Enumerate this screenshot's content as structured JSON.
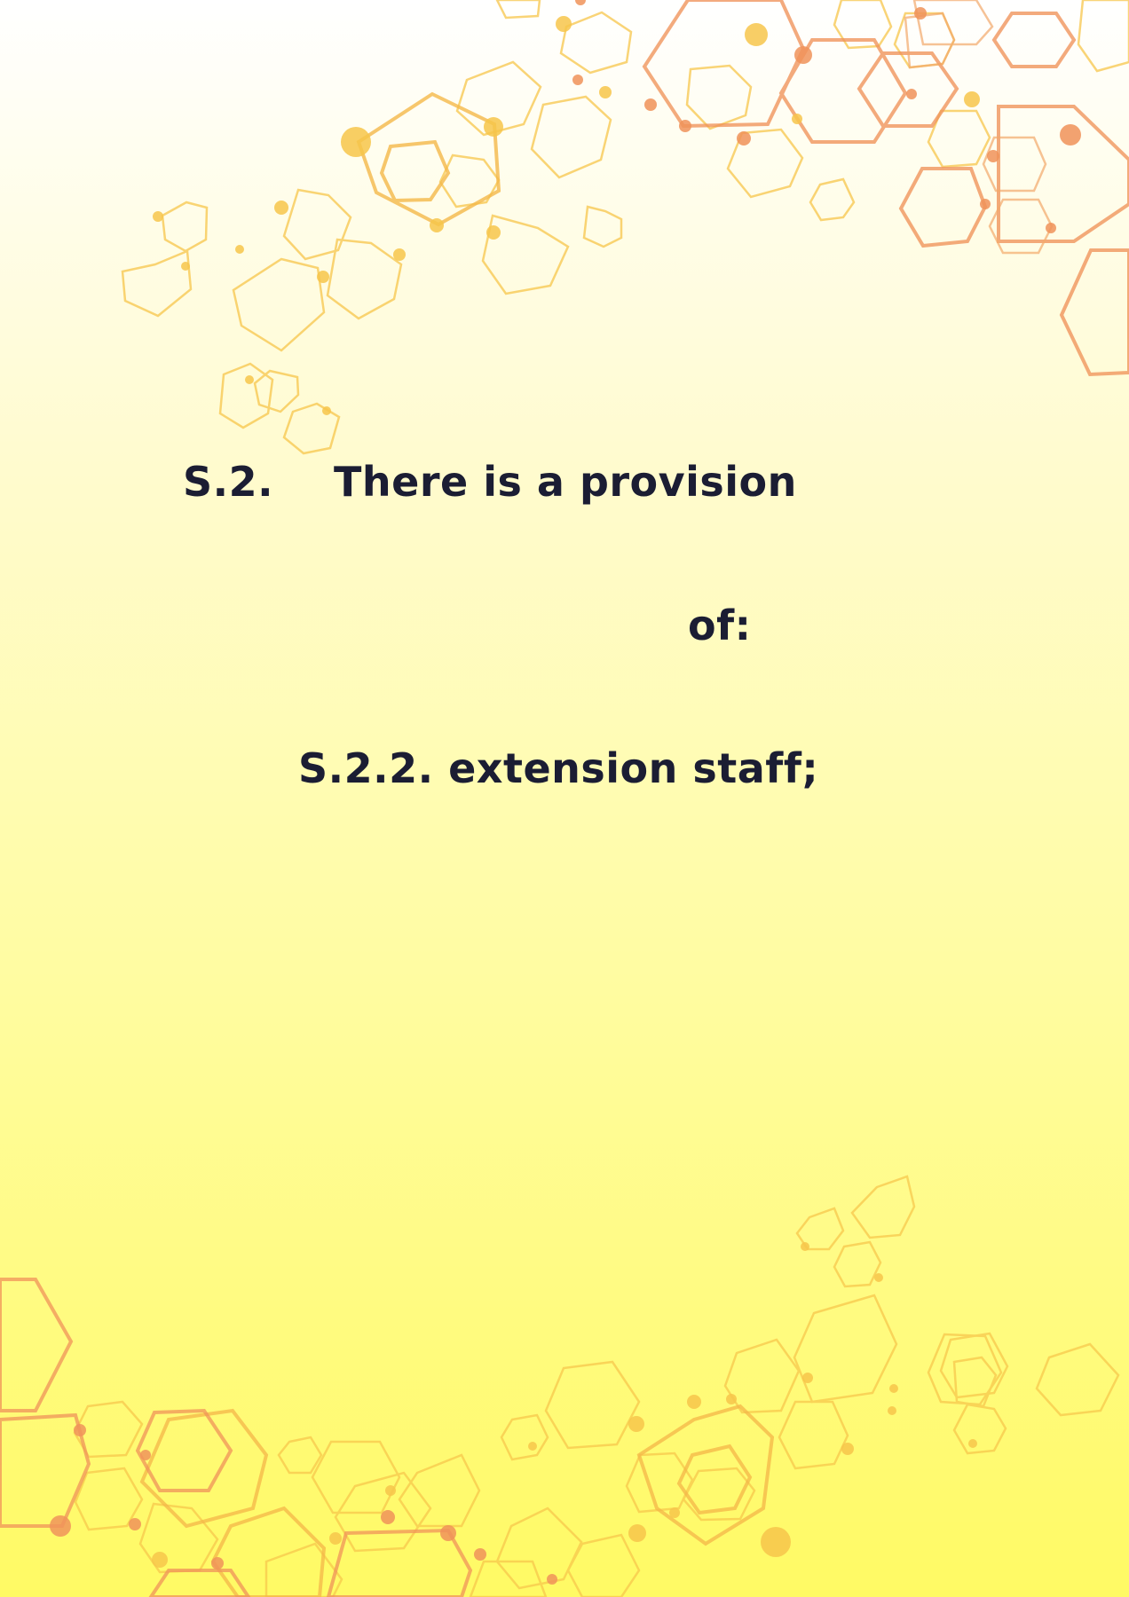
{
  "section": {
    "number": "S.2.",
    "heading": "There is a provision",
    "continuation": "of:"
  },
  "subsection": {
    "text": "S.2.2. extension staff;"
  },
  "decoration": {
    "motif": "hexagon-network",
    "colors": {
      "yellow": "#f7c64b",
      "orange": "#f0935a",
      "gold": "#f5b94a"
    }
  }
}
